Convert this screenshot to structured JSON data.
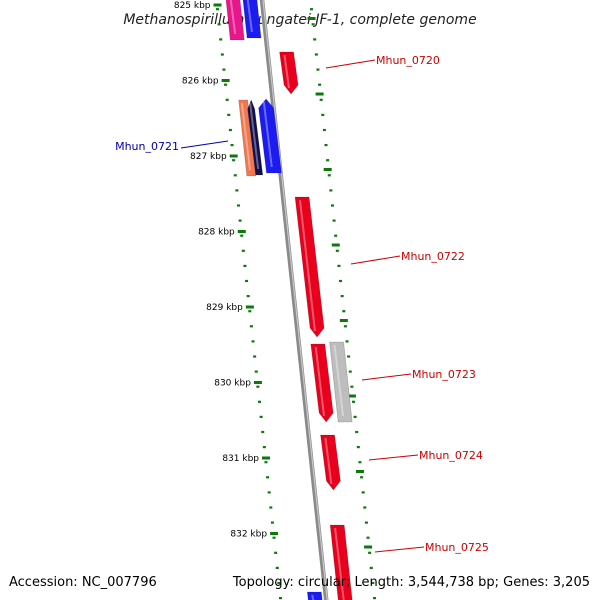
{
  "title": "Methanospirillum hungatei JF-1, complete genome",
  "accession": "Accession: NC_007796",
  "stats": "Topology: circular; Length: 3,544,738 bp; Genes: 3,205",
  "colors": {
    "forward": "#e8001c",
    "reverse": "#1c1cf0",
    "salmon": "#f07850",
    "navy": "#101050",
    "pink": "#e8168c",
    "grey": "#bdbdbd",
    "forward_label": "#cc0000",
    "reverse_label": "#0000b0",
    "tick": "#0a7a0a"
  },
  "ticks": [
    {
      "kbp": 825,
      "label": "825 kbp"
    },
    {
      "kbp": 826,
      "label": "826 kbp"
    },
    {
      "kbp": 827,
      "label": "827 kbp"
    },
    {
      "kbp": 828,
      "label": "828 kbp"
    },
    {
      "kbp": 829,
      "label": "829 kbp"
    },
    {
      "kbp": 830,
      "label": "830 kbp"
    },
    {
      "kbp": 831,
      "label": "831 kbp"
    },
    {
      "kbp": 832,
      "label": "832 kbp"
    }
  ],
  "labeled_genes": [
    {
      "name": "Mhun_0720",
      "strand": "forward"
    },
    {
      "name": "Mhun_0721",
      "strand": "reverse"
    },
    {
      "name": "Mhun_0722",
      "strand": "forward"
    },
    {
      "name": "Mhun_0723",
      "strand": "forward"
    },
    {
      "name": "Mhun_0724",
      "strand": "forward"
    },
    {
      "name": "Mhun_0725",
      "strand": "forward"
    }
  ]
}
